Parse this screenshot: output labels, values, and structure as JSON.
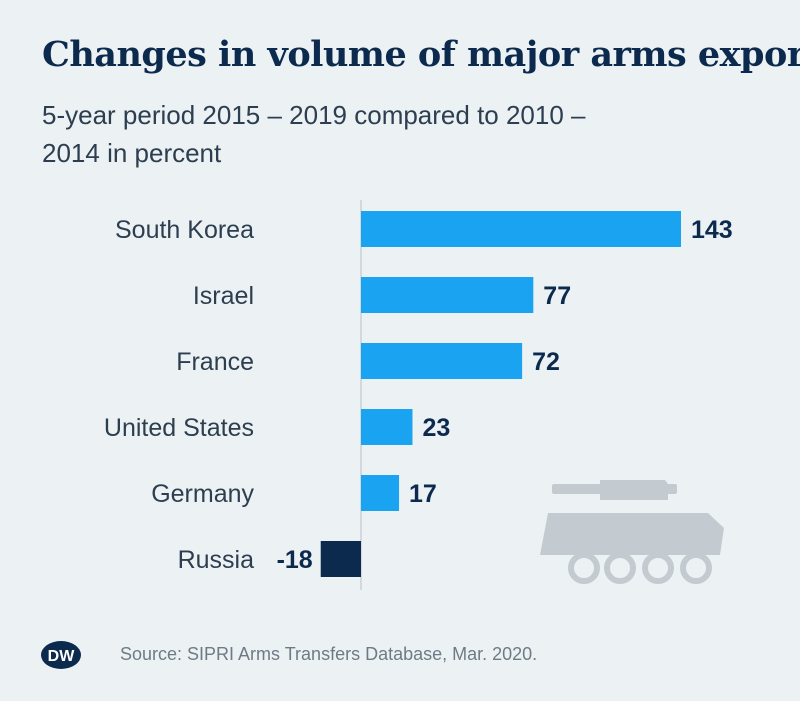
{
  "header": {
    "title": "Changes in volume of major arms exports",
    "subtitle": "5-year period 2015 – 2019 compared to 2010 – 2014 in percent"
  },
  "footer": {
    "source": "Source: SIPRI Arms Transfers Database, Mar. 2020.",
    "logo_text": "DW"
  },
  "colors": {
    "positive_bar": "#1aa3f0",
    "negative_bar": "#0c2a4e",
    "label": "#2c3e50",
    "value": "#0c2a4e",
    "axis": "#c8d0d6",
    "illustration": "#c4cbd0"
  },
  "chart_data": {
    "type": "bar",
    "orientation": "horizontal",
    "title": "Changes in volume of major arms exports",
    "subtitle": "5-year period 2015 – 2019 compared to 2010 – 2014 in percent",
    "categories": [
      "South Korea",
      "Israel",
      "France",
      "United States",
      "Germany",
      "Russia"
    ],
    "values": [
      143,
      77,
      72,
      23,
      17,
      -18
    ],
    "value_labels": [
      "143",
      "77",
      "72",
      "23",
      "17",
      "-18"
    ],
    "xlim": [
      -18,
      143
    ],
    "grid": false,
    "legend": "none",
    "illustration": "armored-vehicle-icon"
  }
}
